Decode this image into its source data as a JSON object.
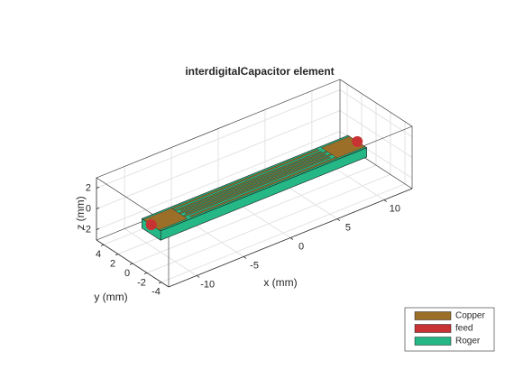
{
  "chart_data": {
    "type": "pcb3d",
    "title": "interdigitalCapacitor element",
    "xlabel": "x (mm)",
    "ylabel": "y (mm)",
    "zlabel": "z (mm)",
    "xlim": [
      -13,
      13
    ],
    "ylim": [
      -5,
      5
    ],
    "zlim": [
      -3,
      3
    ],
    "xticks": [
      -10,
      -5,
      0,
      5,
      10
    ],
    "yticks": [
      -4,
      -2,
      0,
      2,
      4
    ],
    "zticks": [
      -2,
      0,
      2
    ],
    "grid": true,
    "legend": "southeast",
    "series": [
      {
        "name": "Copper",
        "color": "#9c6f28"
      },
      {
        "name": "feed",
        "color": "#c83232"
      },
      {
        "name": "Roger",
        "color": "#25b886"
      }
    ]
  }
}
